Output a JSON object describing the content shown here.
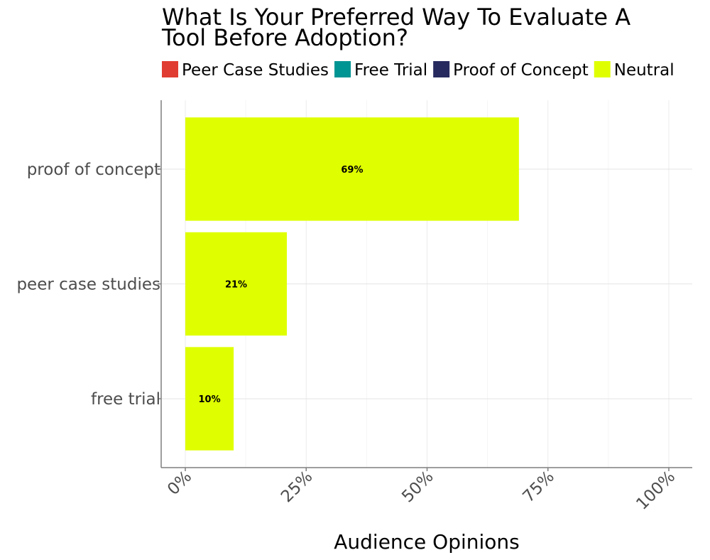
{
  "chart_data": {
    "type": "bar",
    "orientation": "horizontal",
    "title": "What Is Your Preferred Way To Evaluate A Tool Before Adoption?",
    "title_lines": [
      "What Is Your Preferred Way To Evaluate A",
      "Tool Before Adoption?"
    ],
    "xlabel": "Audience Opinions",
    "ylabel": "",
    "categories": [
      "proof of concept",
      "peer case studies",
      "free trial"
    ],
    "values": [
      69,
      21,
      10
    ],
    "data_labels": [
      "69%",
      "21%",
      "10%"
    ],
    "bar_color": "#dfff00",
    "xlim": [
      0,
      100
    ],
    "x_ticks": [
      0,
      25,
      50,
      75,
      100
    ],
    "x_tick_labels": [
      "0%",
      "25%",
      "50%",
      "75%",
      "100%"
    ],
    "grid": true,
    "legend_position": "top",
    "legend": [
      {
        "label": "Peer Case Studies",
        "color": "#e03c31"
      },
      {
        "label": "Free Trial",
        "color": "#009593"
      },
      {
        "label": "Proof of Concept",
        "color": "#262a5e"
      },
      {
        "label": "Neutral",
        "color": "#dfff00"
      }
    ]
  }
}
